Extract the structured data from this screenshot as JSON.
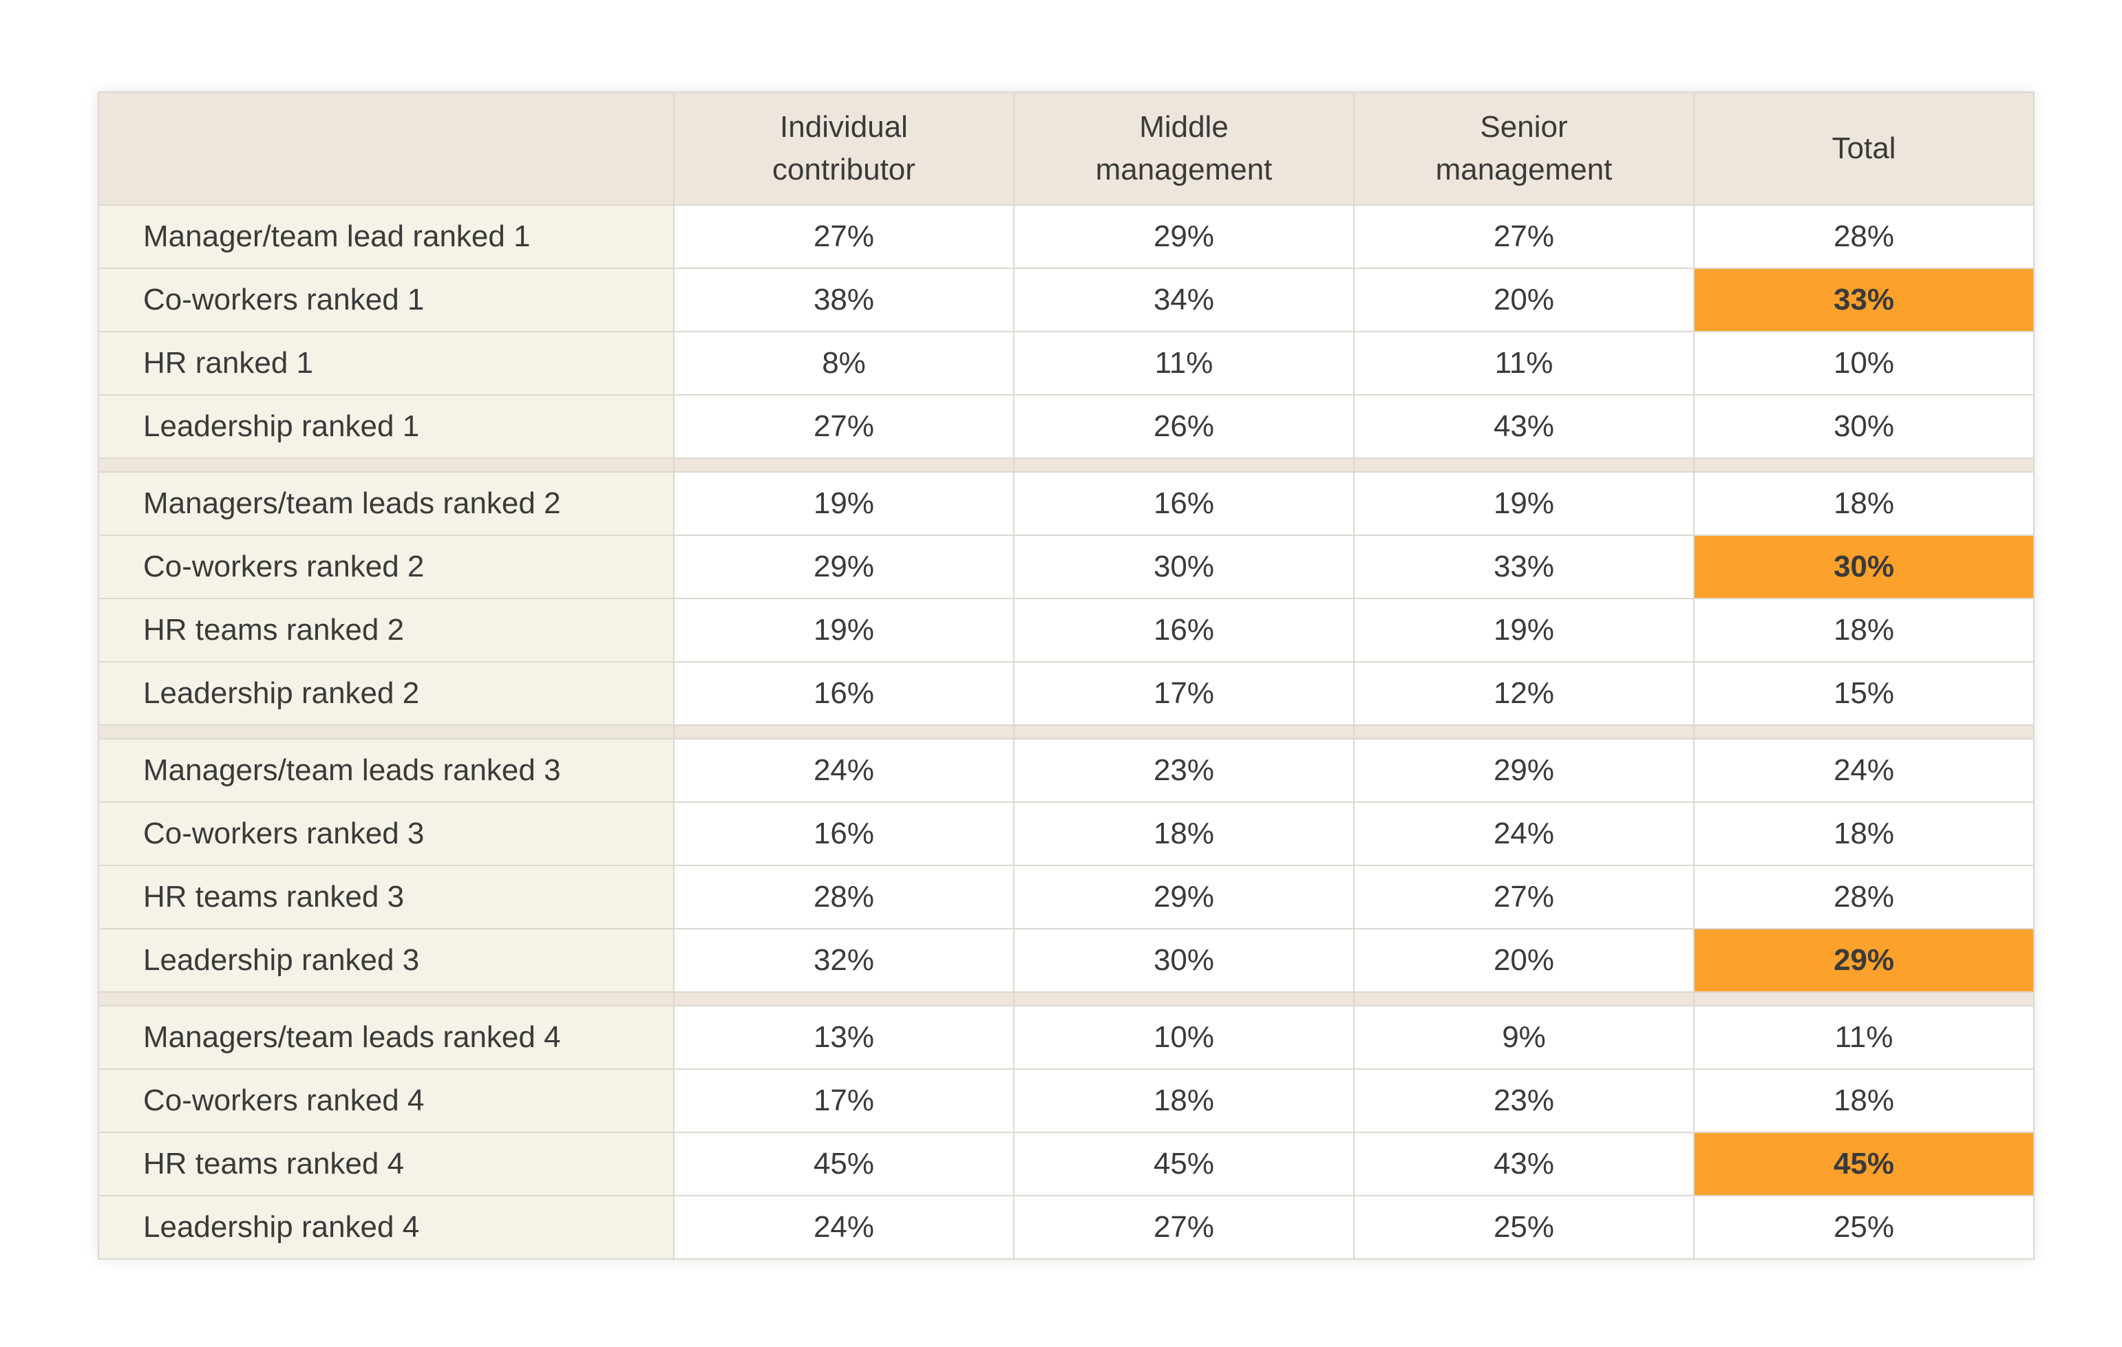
{
  "colors": {
    "header_bg": "#eee6dc",
    "label_bg": "#f5f2e7",
    "cell_bg": "#ffffff",
    "highlight": "#fba12c",
    "border": "#dcd8cf",
    "text": "#3a3a3a"
  },
  "chart_data": {
    "type": "table",
    "title": "",
    "columns": [
      "",
      "Individual\ncontributor",
      "Middle\nmanagement",
      "Senior\nmanagement",
      "Total"
    ],
    "groups": [
      {
        "rows": [
          {
            "label": "Manager/team lead ranked 1",
            "values": [
              "27%",
              "29%",
              "27%",
              "28%"
            ],
            "highlight": []
          },
          {
            "label": "Co-workers ranked 1",
            "values": [
              "38%",
              "34%",
              "20%",
              "33%"
            ],
            "highlight": [
              3
            ]
          },
          {
            "label": "HR ranked 1",
            "values": [
              "8%",
              "11%",
              "11%",
              "10%"
            ],
            "highlight": []
          },
          {
            "label": "Leadership ranked 1",
            "values": [
              "27%",
              "26%",
              "43%",
              "30%"
            ],
            "highlight": []
          }
        ]
      },
      {
        "rows": [
          {
            "label": "Managers/team leads ranked 2",
            "values": [
              "19%",
              "16%",
              "19%",
              "18%"
            ],
            "highlight": []
          },
          {
            "label": "Co-workers ranked 2",
            "values": [
              "29%",
              "30%",
              "33%",
              "30%"
            ],
            "highlight": [
              3
            ]
          },
          {
            "label": "HR teams ranked 2",
            "values": [
              "19%",
              "16%",
              "19%",
              "18%"
            ],
            "highlight": []
          },
          {
            "label": "Leadership ranked 2",
            "values": [
              "16%",
              "17%",
              "12%",
              "15%"
            ],
            "highlight": []
          }
        ]
      },
      {
        "rows": [
          {
            "label": "Managers/team leads ranked 3",
            "values": [
              "24%",
              "23%",
              "29%",
              "24%"
            ],
            "highlight": []
          },
          {
            "label": "Co-workers ranked 3",
            "values": [
              "16%",
              "18%",
              "24%",
              "18%"
            ],
            "highlight": []
          },
          {
            "label": "HR teams ranked 3",
            "values": [
              "28%",
              "29%",
              "27%",
              "28%"
            ],
            "highlight": []
          },
          {
            "label": "Leadership ranked 3",
            "values": [
              "32%",
              "30%",
              "20%",
              "29%"
            ],
            "highlight": [
              3
            ]
          }
        ]
      },
      {
        "rows": [
          {
            "label": "Managers/team leads ranked 4",
            "values": [
              "13%",
              "10%",
              "9%",
              "11%"
            ],
            "highlight": []
          },
          {
            "label": "Co-workers ranked 4",
            "values": [
              "17%",
              "18%",
              "23%",
              "18%"
            ],
            "highlight": []
          },
          {
            "label": "HR teams ranked 4",
            "values": [
              "45%",
              "45%",
              "43%",
              "45%"
            ],
            "highlight": [
              3
            ]
          },
          {
            "label": "Leadership ranked 4",
            "values": [
              "24%",
              "27%",
              "25%",
              "25%"
            ],
            "highlight": []
          }
        ]
      }
    ]
  }
}
